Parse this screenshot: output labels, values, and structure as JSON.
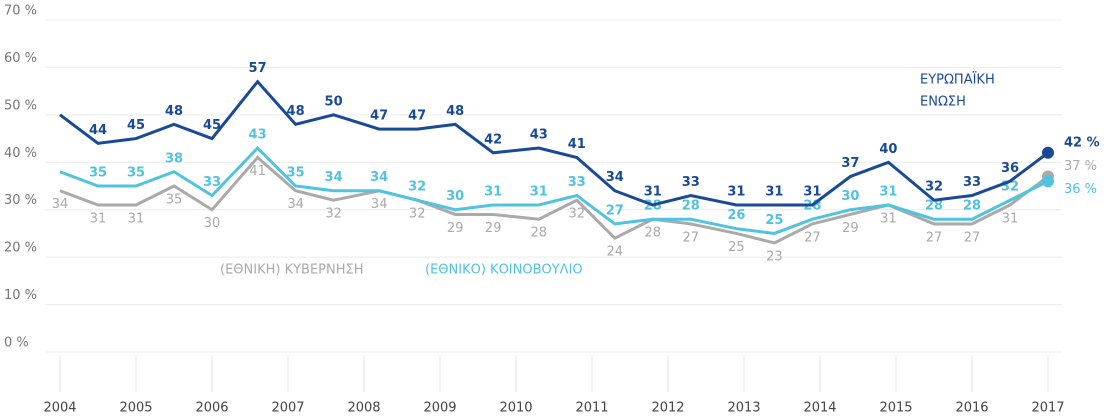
{
  "chart_data": {
    "type": "line",
    "x": [
      2004,
      2004.5,
      2005,
      2005.5,
      2006,
      2006.6,
      2007.1,
      2007.6,
      2008.2,
      2008.7,
      2009.2,
      2009.7,
      2010.3,
      2010.8,
      2011.3,
      2011.8,
      2012.3,
      2012.9,
      2013.4,
      2013.9,
      2014.4,
      2014.9,
      2015.5,
      2016,
      2016.5,
      2017
    ],
    "xlim": [
      2004,
      2017
    ],
    "xticks": [
      2004,
      2005,
      2006,
      2007,
      2008,
      2009,
      2010,
      2011,
      2012,
      2013,
      2014,
      2015,
      2016,
      2017
    ],
    "ylim": [
      0,
      70
    ],
    "yticks": [
      {
        "value": 0,
        "label": "0 %"
      },
      {
        "value": 10,
        "label": "10 %"
      },
      {
        "value": 20,
        "label": "20 %"
      },
      {
        "value": 30,
        "label": "30 %"
      },
      {
        "value": 40,
        "label": "40 %"
      },
      {
        "value": 50,
        "label": "50 %"
      },
      {
        "value": 60,
        "label": "60 %"
      },
      {
        "value": 70,
        "label": "70 %"
      }
    ],
    "grid": true,
    "annotations": [
      "ΕΥΡΩΠΑΪΚΗ",
      "ΕΝΩΣΗ",
      "(ΕΘΝΙΚΗ) ΚΥΒΕΡΝΗΣΗ",
      "(ΕΘΝΙΚΟ) ΚΟΙΝΟΒΟΥΛΙΟ"
    ],
    "series": [
      {
        "color": "#aaaaaa",
        "values": [
          34,
          31,
          31,
          35,
          30,
          41,
          34,
          32,
          34,
          32,
          29,
          29,
          28,
          32,
          24,
          28,
          27,
          25,
          23,
          27,
          29,
          31,
          27,
          27,
          31,
          37
        ],
        "value_labels": [
          "34",
          "31",
          "31",
          "35",
          "30",
          "41",
          "34",
          "32",
          "34",
          "32",
          "29",
          "29",
          "28",
          "32",
          "24",
          "28",
          "27",
          "25",
          "23",
          "27",
          "29",
          "31",
          "27",
          "27",
          "31",
          "37 %"
        ]
      },
      {
        "color": "#4fc3e0",
        "values": [
          38,
          35,
          35,
          38,
          33,
          43,
          35,
          34,
          34,
          32,
          30,
          31,
          31,
          33,
          27,
          28,
          28,
          26,
          25,
          28,
          30,
          31,
          28,
          28,
          32,
          36
        ],
        "value_labels": [
          null,
          "35",
          "35",
          "38",
          "33",
          "43",
          "35",
          "34",
          "34",
          "32",
          "30",
          "31",
          "31",
          "33",
          "27",
          "28",
          "28",
          "26",
          "25",
          "28",
          "30",
          "31",
          "28",
          "28",
          "32",
          "36 %"
        ]
      },
      {
        "color": "#1a4a96",
        "values": [
          50,
          44,
          45,
          48,
          45,
          57,
          48,
          50,
          47,
          47,
          48,
          42,
          43,
          41,
          34,
          31,
          33,
          31,
          31,
          31,
          37,
          40,
          32,
          33,
          36,
          42
        ],
        "value_labels": [
          null,
          "44",
          "45",
          "48",
          "45",
          "57",
          "48",
          "50",
          "47",
          "47",
          "48",
          "42",
          "43",
          "41",
          "34",
          "31",
          "33",
          "31",
          "31",
          "31",
          "37",
          "40",
          "32",
          "33",
          "36",
          "42 %"
        ]
      }
    ]
  }
}
